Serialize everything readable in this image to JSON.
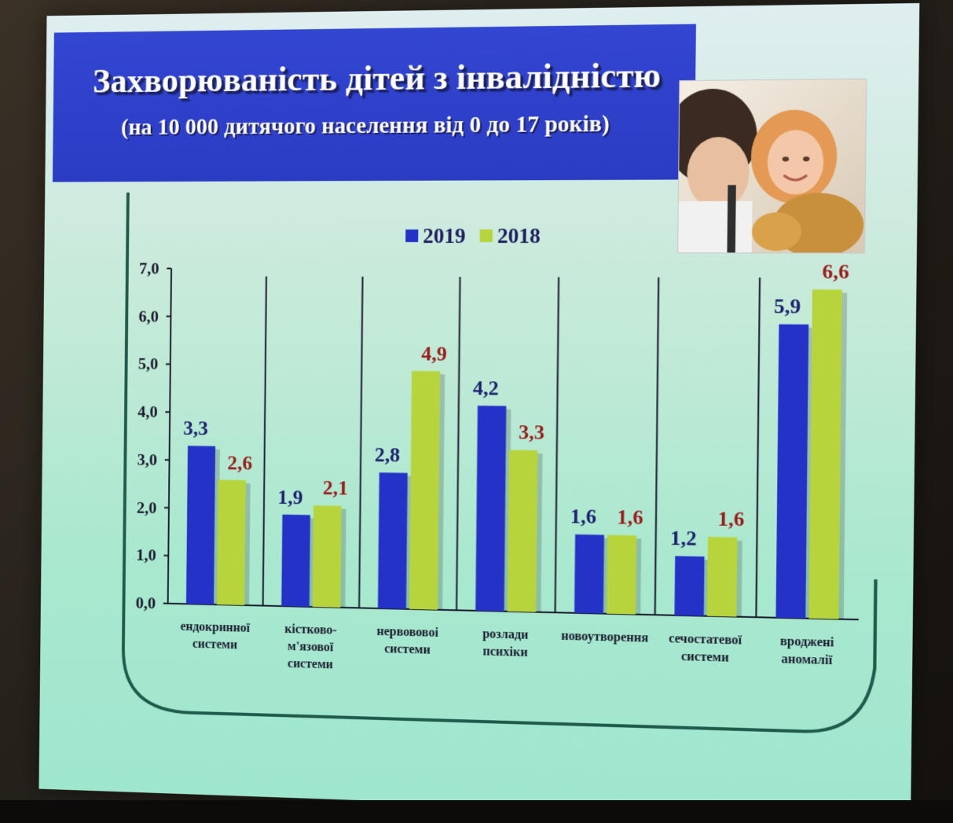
{
  "slide": {
    "title": "Захворюваність дітей з інвалідністю",
    "subtitle": "(на 10 000 дитячого населення від 0 до 17 років)",
    "photo_icon": "parent-child-photo"
  },
  "colors": {
    "series_2019": "#2432c8",
    "series_2018": "#b8d43c",
    "label_2019": "#1c2270",
    "label_2018": "#9b1c1c",
    "band": "#2b3cc4",
    "axis": "#1a1a2e"
  },
  "chart_data": {
    "type": "bar",
    "title": "Захворюваність дітей з інвалідністю",
    "subtitle": "(на 10 000 дитячого населення від 0 до 17 років)",
    "categories": [
      [
        "ендокринної",
        "системи"
      ],
      [
        "кістково-",
        "м'язової",
        "системи"
      ],
      [
        "нервововоі",
        "системи"
      ],
      [
        "розлади",
        "психіки"
      ],
      [
        "новоутворення"
      ],
      [
        "сечостатевої",
        "системи"
      ],
      [
        "вроджені",
        "аномалії"
      ]
    ],
    "series": [
      {
        "name": "2019",
        "values": [
          3.3,
          1.9,
          2.8,
          4.2,
          1.6,
          1.2,
          5.9
        ],
        "labels": [
          "3,3",
          "1,9",
          "2,8",
          "4,2",
          "1,6",
          "1,2",
          "5,9"
        ]
      },
      {
        "name": "2018",
        "values": [
          2.6,
          2.1,
          4.9,
          3.3,
          1.6,
          1.6,
          6.6
        ],
        "labels": [
          "2,6",
          "2,1",
          "4,9",
          "3,3",
          "1,6",
          "1,6",
          "6,6"
        ]
      }
    ],
    "yticks": [
      0,
      1,
      2,
      3,
      4,
      5,
      6,
      7
    ],
    "ytick_labels": [
      "0,0",
      "1,0",
      "2,0",
      "3,0",
      "4,0",
      "5,0",
      "6,0",
      "7,0"
    ],
    "ylim": [
      0,
      7
    ],
    "legend_position": "top-center",
    "grid": false
  }
}
